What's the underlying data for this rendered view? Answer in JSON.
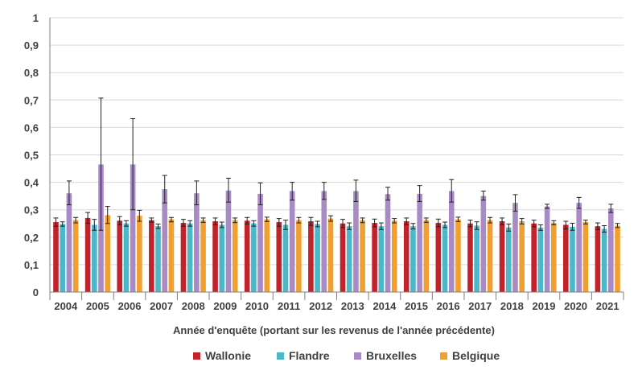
{
  "chart_data": {
    "type": "bar",
    "title": "",
    "xlabel": "Année d'enquête (portant sur les revenus de l'année précédente)",
    "ylabel": "",
    "ylim": [
      0,
      1
    ],
    "y_ticks": [
      "0",
      "0,1",
      "0,2",
      "0,3",
      "0,4",
      "0,5",
      "0,6",
      "0,7",
      "0,8",
      "0,9",
      "1"
    ],
    "y_tick_values": [
      0,
      0.1,
      0.2,
      0.3,
      0.4,
      0.5,
      0.6,
      0.7,
      0.8,
      0.9,
      1
    ],
    "grid": true,
    "legend_position": "bottom",
    "categories": [
      "2004",
      "2005",
      "2006",
      "2007",
      "2008",
      "2009",
      "2010",
      "2011",
      "2012",
      "2013",
      "2014",
      "2015",
      "2016",
      "2017",
      "2018",
      "2019",
      "2020",
      "2021"
    ],
    "series": [
      {
        "name": "Wallonie",
        "color": "#c0232c",
        "values": [
          0.255,
          0.27,
          0.26,
          0.262,
          0.252,
          0.258,
          0.26,
          0.255,
          0.258,
          0.25,
          0.252,
          0.258,
          0.252,
          0.25,
          0.258,
          0.25,
          0.245,
          0.24
        ],
        "err_low": [
          0.24,
          0.25,
          0.245,
          0.255,
          0.24,
          0.245,
          0.248,
          0.24,
          0.243,
          0.235,
          0.238,
          0.245,
          0.238,
          0.238,
          0.245,
          0.238,
          0.23,
          0.228
        ],
        "err_high": [
          0.27,
          0.29,
          0.275,
          0.27,
          0.265,
          0.27,
          0.272,
          0.268,
          0.272,
          0.265,
          0.266,
          0.27,
          0.266,
          0.262,
          0.27,
          0.262,
          0.258,
          0.252
        ]
      },
      {
        "name": "Flandre",
        "color": "#4bb7c9",
        "values": [
          0.248,
          0.245,
          0.25,
          0.24,
          0.25,
          0.245,
          0.25,
          0.245,
          0.248,
          0.24,
          0.24,
          0.24,
          0.245,
          0.242,
          0.235,
          0.235,
          0.238,
          0.23
        ],
        "err_low": [
          0.24,
          0.225,
          0.24,
          0.232,
          0.24,
          0.235,
          0.24,
          0.228,
          0.238,
          0.228,
          0.228,
          0.23,
          0.235,
          0.228,
          0.222,
          0.225,
          0.225,
          0.218
        ],
        "err_high": [
          0.256,
          0.265,
          0.26,
          0.248,
          0.26,
          0.255,
          0.26,
          0.262,
          0.258,
          0.252,
          0.252,
          0.25,
          0.255,
          0.256,
          0.248,
          0.245,
          0.251,
          0.242
        ]
      },
      {
        "name": "Bruxelles",
        "color": "#a88bc4",
        "values": [
          0.36,
          0.465,
          0.465,
          0.375,
          0.36,
          0.37,
          0.358,
          0.368,
          0.368,
          0.368,
          0.357,
          0.358,
          0.368,
          0.35,
          0.325,
          0.312,
          0.325,
          0.305
        ],
        "err_low": [
          0.318,
          0.225,
          0.3,
          0.325,
          0.318,
          0.328,
          0.318,
          0.335,
          0.338,
          0.33,
          0.335,
          0.33,
          0.328,
          0.335,
          0.295,
          0.305,
          0.305,
          0.29
        ],
        "err_high": [
          0.405,
          0.707,
          0.632,
          0.425,
          0.405,
          0.415,
          0.398,
          0.4,
          0.4,
          0.408,
          0.382,
          0.388,
          0.41,
          0.368,
          0.355,
          0.32,
          0.345,
          0.32
        ]
      },
      {
        "name": "Belgique",
        "color": "#f0a030",
        "values": [
          0.262,
          0.28,
          0.278,
          0.265,
          0.262,
          0.262,
          0.265,
          0.262,
          0.268,
          0.262,
          0.26,
          0.262,
          0.265,
          0.262,
          0.258,
          0.252,
          0.255,
          0.242
        ],
        "err_low": [
          0.252,
          0.25,
          0.258,
          0.256,
          0.254,
          0.253,
          0.257,
          0.252,
          0.258,
          0.253,
          0.252,
          0.254,
          0.257,
          0.252,
          0.248,
          0.245,
          0.248,
          0.235
        ],
        "err_high": [
          0.272,
          0.312,
          0.298,
          0.272,
          0.27,
          0.27,
          0.273,
          0.272,
          0.278,
          0.27,
          0.268,
          0.27,
          0.273,
          0.272,
          0.268,
          0.26,
          0.262,
          0.25
        ]
      }
    ]
  }
}
